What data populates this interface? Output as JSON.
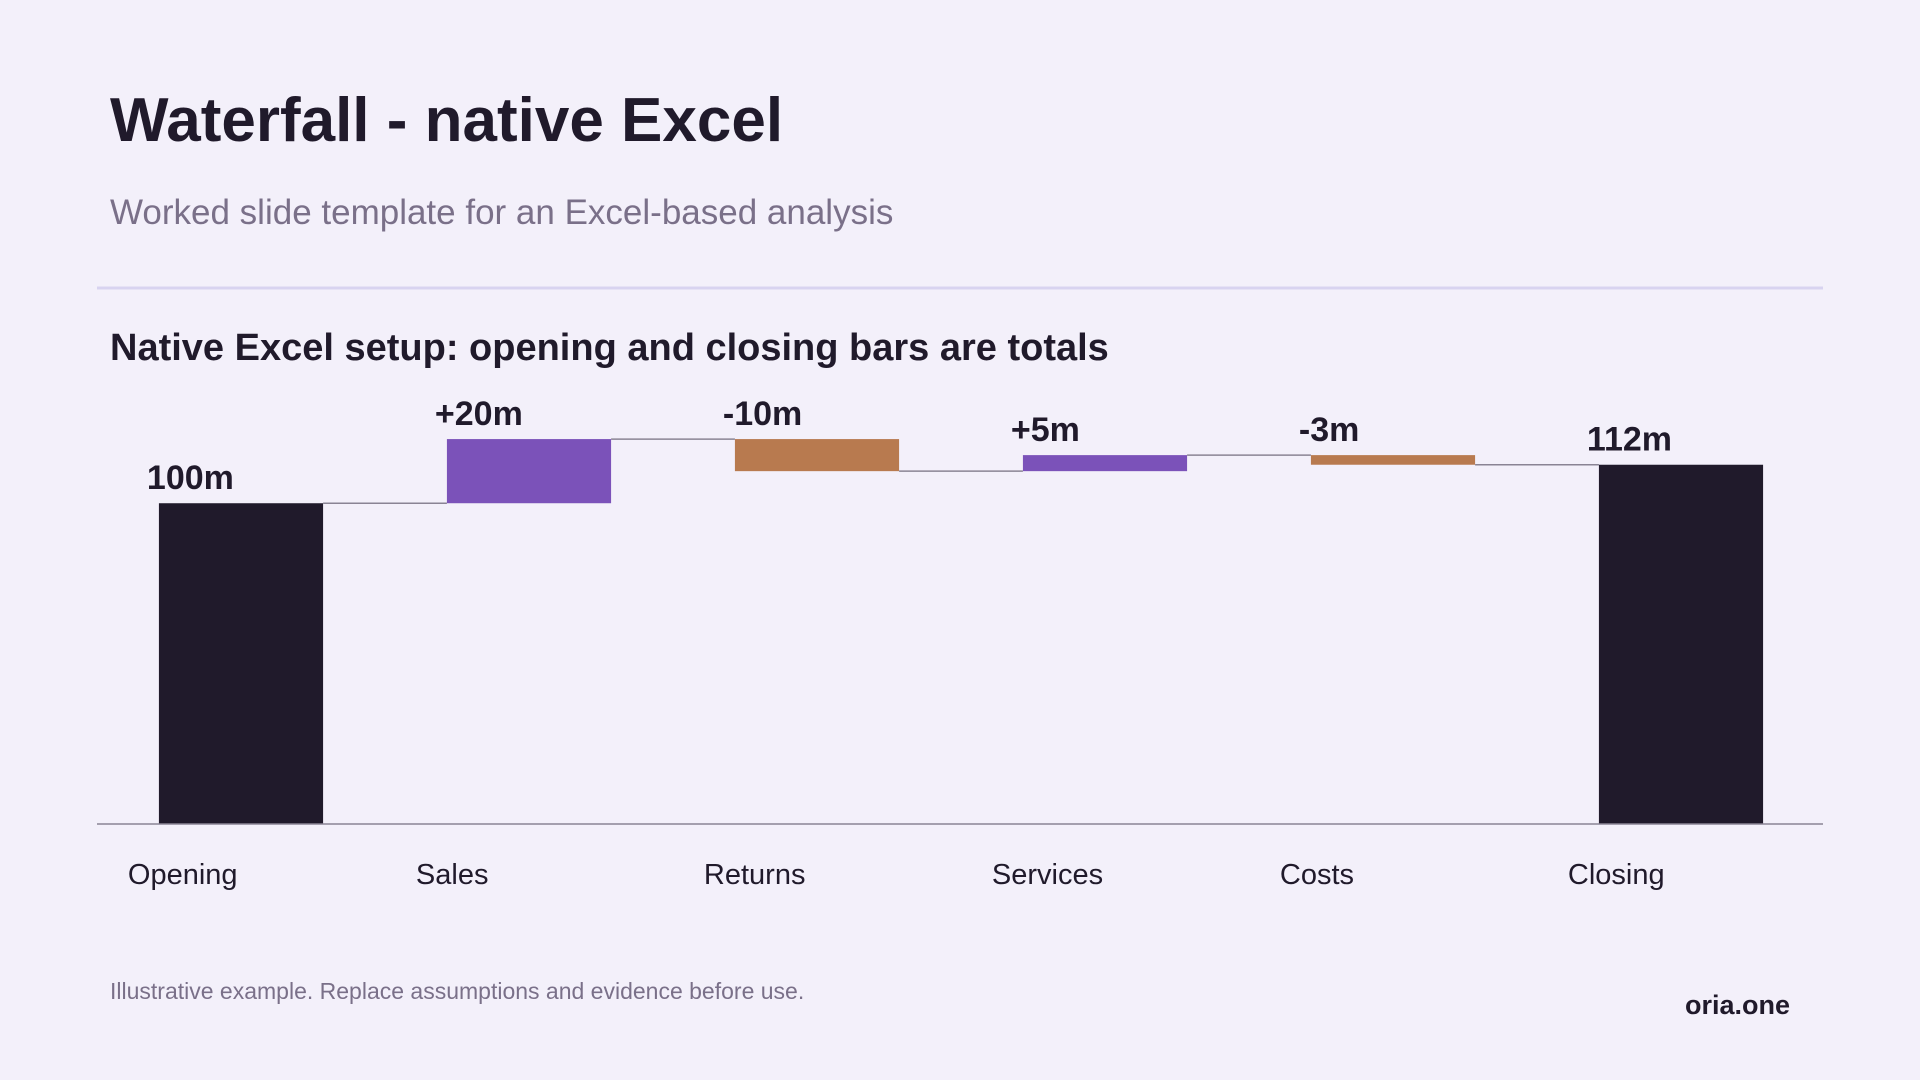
{
  "header": {
    "title": "Waterfall - native Excel",
    "subtitle": "Worked slide template for an Excel-based analysis"
  },
  "chart_data": {
    "type": "waterfall",
    "title": "Native Excel setup: opening and closing bars are totals",
    "categories": [
      "Opening",
      "Sales",
      "Returns",
      "Services",
      "Costs",
      "Closing"
    ],
    "values": [
      100,
      20,
      -10,
      5,
      -3,
      112
    ],
    "value_labels": [
      "100m",
      "+20m",
      "-10m",
      "+5m",
      "-3m",
      "112m"
    ],
    "measure": [
      "total",
      "relative",
      "relative",
      "relative",
      "relative",
      "total"
    ],
    "colors": {
      "total": "#201a2b",
      "increase": "#7b52b9",
      "decrease": "#b87a4f"
    },
    "ylim": [
      0,
      130
    ]
  },
  "footer": {
    "note": "Illustrative example. Replace assumptions and evidence before use.",
    "brand": "oria.one"
  }
}
